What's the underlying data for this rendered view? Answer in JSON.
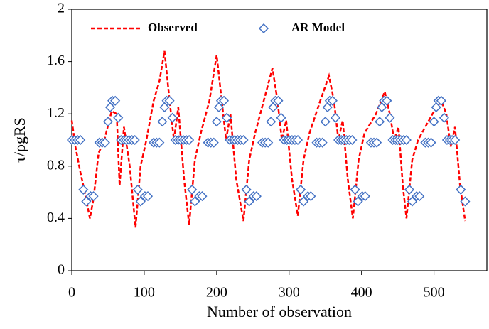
{
  "chart_data": {
    "type": "line_scatter",
    "xlabel": "Number of observation",
    "ylabel": "τ/ρgRS",
    "xlim": [
      0,
      573
    ],
    "ylim": [
      0,
      2
    ],
    "xticks": [
      0,
      100,
      200,
      300,
      400,
      500
    ],
    "yticks": [
      0,
      0.4,
      0.8,
      1.2,
      1.6,
      2
    ],
    "series": [
      {
        "name": "Observed",
        "color": "#ff0000",
        "style": "dashed",
        "x": [
          0,
          5,
          12,
          18,
          25,
          30,
          37,
          45,
          55,
          62,
          66,
          72,
          80,
          88,
          95,
          103,
          113,
          121,
          128,
          135,
          141,
          147,
          155,
          162,
          170,
          178,
          190,
          200,
          207,
          213,
          219,
          227,
          237,
          245,
          253,
          265,
          277,
          284,
          290,
          296,
          304,
          312,
          320,
          328,
          343,
          355,
          362,
          368,
          374,
          381,
          388,
          396,
          404,
          420,
          432,
          439,
          445,
          451,
          457,
          462,
          470,
          478,
          498,
          510,
          517,
          523,
          529,
          536,
          543
        ],
        "values": [
          1.15,
          0.95,
          0.75,
          0.6,
          0.4,
          0.55,
          0.9,
          1.0,
          1.22,
          1.2,
          0.65,
          1.1,
          0.8,
          0.33,
          0.8,
          1.0,
          1.3,
          1.45,
          1.68,
          1.3,
          1.0,
          1.25,
          0.7,
          0.35,
          0.85,
          1.05,
          1.3,
          1.65,
          1.3,
          1.0,
          1.2,
          0.7,
          0.38,
          0.85,
          1.05,
          1.3,
          1.55,
          1.3,
          1.0,
          1.15,
          0.7,
          0.42,
          0.85,
          1.05,
          1.3,
          1.49,
          1.3,
          1.0,
          1.15,
          0.7,
          0.4,
          0.85,
          1.05,
          1.2,
          1.37,
          1.2,
          1.0,
          1.1,
          0.65,
          0.4,
          0.85,
          1.0,
          1.2,
          1.3,
          1.2,
          0.95,
          1.1,
          0.65,
          0.38
        ]
      },
      {
        "name": "AR Model",
        "color": "#4472c4",
        "style": "diamond",
        "x": [
          0,
          4,
          8,
          12,
          16,
          20,
          26,
          30,
          38,
          42,
          46,
          50,
          53,
          56,
          60,
          64,
          68,
          72,
          75,
          79,
          83,
          87,
          91,
          95,
          101,
          105,
          113,
          117,
          121,
          125,
          128,
          131,
          135,
          139,
          143,
          147,
          150,
          154,
          158,
          162,
          166,
          170,
          176,
          180,
          188,
          192,
          196,
          200,
          203,
          206,
          210,
          214,
          218,
          222,
          225,
          229,
          233,
          237,
          241,
          245,
          251,
          255,
          263,
          267,
          271,
          275,
          278,
          281,
          285,
          289,
          293,
          297,
          300,
          304,
          308,
          312,
          316,
          320,
          326,
          330,
          338,
          342,
          346,
          350,
          353,
          356,
          360,
          364,
          368,
          372,
          375,
          379,
          383,
          387,
          391,
          395,
          401,
          405,
          413,
          417,
          421,
          425,
          428,
          431,
          435,
          439,
          443,
          447,
          450,
          454,
          458,
          462,
          466,
          470,
          476,
          480,
          488,
          492,
          496,
          500,
          503,
          506,
          510,
          514,
          518,
          522,
          525,
          529,
          537,
          543
        ],
        "values": [
          1,
          1,
          1,
          1,
          0.62,
          0.53,
          0.57,
          0.57,
          0.98,
          0.98,
          0.98,
          1.14,
          1.25,
          1.3,
          1.3,
          1.17,
          1,
          1,
          1,
          1,
          1,
          1,
          0.62,
          0.53,
          0.57,
          0.57,
          0.98,
          0.98,
          0.98,
          1.14,
          1.25,
          1.3,
          1.3,
          1.17,
          1,
          1,
          1,
          1,
          1,
          1,
          0.62,
          0.53,
          0.57,
          0.57,
          0.98,
          0.98,
          0.98,
          1.14,
          1.25,
          1.3,
          1.3,
          1.17,
          1,
          1,
          1,
          1,
          1,
          1,
          0.62,
          0.53,
          0.57,
          0.57,
          0.98,
          0.98,
          0.98,
          1.14,
          1.25,
          1.3,
          1.3,
          1.17,
          1,
          1,
          1,
          1,
          1,
          1,
          0.62,
          0.53,
          0.57,
          0.57,
          0.98,
          0.98,
          0.98,
          1.14,
          1.25,
          1.3,
          1.3,
          1.17,
          1,
          1,
          1,
          1,
          1,
          1,
          0.62,
          0.53,
          0.57,
          0.57,
          0.98,
          0.98,
          0.98,
          1.14,
          1.25,
          1.3,
          1.3,
          1.17,
          1,
          1,
          1,
          1,
          1,
          1,
          0.62,
          0.53,
          0.57,
          0.57,
          0.98,
          0.98,
          0.98,
          1.14,
          1.25,
          1.3,
          1.3,
          1.17,
          1,
          1,
          1,
          1,
          0.62,
          0.53
        ]
      }
    ]
  }
}
